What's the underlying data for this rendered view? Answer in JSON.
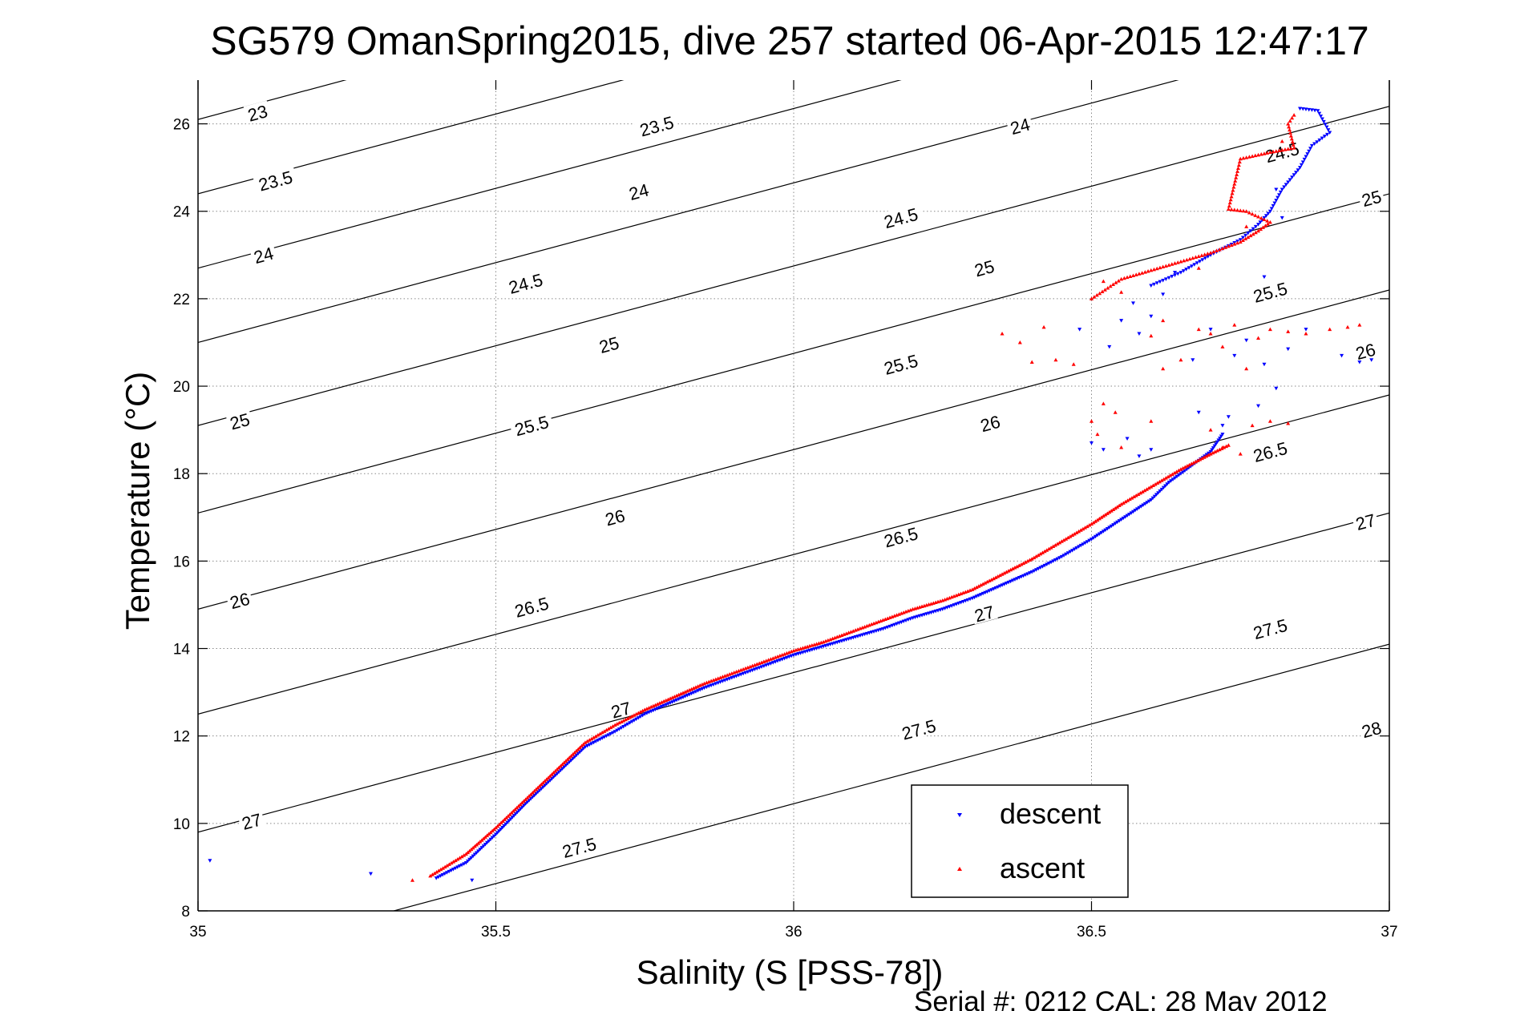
{
  "chart_data": {
    "type": "scatter",
    "title": "SG579 OmanSpring2015, dive 257 started 06-Apr-2015 12:47:17",
    "xlabel": "Salinity (S [PSS-78])",
    "ylabel": "Temperature (°C)",
    "xlim": [
      35,
      37
    ],
    "ylim": [
      8,
      27
    ],
    "xticks": [
      35,
      35.5,
      36,
      36.5,
      37
    ],
    "xtick_labels": [
      "35",
      "35.5",
      "36",
      "36.5",
      "37"
    ],
    "yticks": [
      8,
      10,
      12,
      14,
      16,
      18,
      20,
      22,
      24,
      26
    ],
    "ytick_labels": [
      "8",
      "10",
      "12",
      "14",
      "16",
      "18",
      "20",
      "22",
      "24",
      "26"
    ],
    "grid": "dotted at major ticks",
    "legend_position": "lower-right",
    "contour_lines": {
      "levels": [
        23,
        23.5,
        24,
        24.5,
        25,
        25.5,
        26,
        26.5,
        27,
        27.5,
        28
      ],
      "left_intercepts": [
        27.2,
        26.1,
        24.4,
        22.7,
        21.0,
        19.1,
        17.1,
        14.9,
        12.5,
        9.8,
        6.8
      ],
      "slope_degC_per_psu": 3.65,
      "label_positions": [
        {
          "text": "23",
          "s": 35.1,
          "t": 26.25
        },
        {
          "text": "23.5",
          "s": 35.77,
          "t": 25.95
        },
        {
          "text": "24",
          "s": 36.38,
          "t": 25.95
        },
        {
          "text": "23.5",
          "s": 35.13,
          "t": 24.7
        },
        {
          "text": "24",
          "s": 35.74,
          "t": 24.45
        },
        {
          "text": "24.5",
          "s": 36.82,
          "t": 25.35
        },
        {
          "text": "24",
          "s": 35.11,
          "t": 23.0
        },
        {
          "text": "24.5",
          "s": 36.18,
          "t": 23.85
        },
        {
          "text": "25",
          "s": 36.97,
          "t": 24.3
        },
        {
          "text": "24.5",
          "s": 35.55,
          "t": 22.35
        },
        {
          "text": "25",
          "s": 36.32,
          "t": 22.7
        },
        {
          "text": "25.5",
          "s": 36.8,
          "t": 22.15
        },
        {
          "text": "25",
          "s": 35.69,
          "t": 20.95
        },
        {
          "text": "25.5",
          "s": 36.18,
          "t": 20.5
        },
        {
          "text": "26",
          "s": 36.96,
          "t": 20.8
        },
        {
          "text": "25",
          "s": 35.07,
          "t": 19.2
        },
        {
          "text": "25.5",
          "s": 35.56,
          "t": 19.1
        },
        {
          "text": "26",
          "s": 36.33,
          "t": 19.15
        },
        {
          "text": "26.5",
          "s": 36.8,
          "t": 18.5
        },
        {
          "text": "26",
          "s": 35.7,
          "t": 17.0
        },
        {
          "text": "26.5",
          "s": 36.18,
          "t": 16.55
        },
        {
          "text": "27",
          "s": 36.96,
          "t": 16.9
        },
        {
          "text": "26",
          "s": 35.07,
          "t": 15.1
        },
        {
          "text": "26.5",
          "s": 35.56,
          "t": 14.95
        },
        {
          "text": "27",
          "s": 36.32,
          "t": 14.8
        },
        {
          "text": "27.5",
          "s": 36.8,
          "t": 14.45
        },
        {
          "text": "27",
          "s": 35.71,
          "t": 12.6
        },
        {
          "text": "27.5",
          "s": 36.21,
          "t": 12.15
        },
        {
          "text": "28",
          "s": 36.97,
          "t": 12.15
        },
        {
          "text": "27",
          "s": 35.09,
          "t": 10.05
        },
        {
          "text": "27.5",
          "s": 35.64,
          "t": 9.45
        }
      ]
    },
    "series": [
      {
        "name": "descent",
        "color": "#0000ff",
        "marker": "triangle-down",
        "profile": [
          [
            35.4,
            8.75
          ],
          [
            35.45,
            9.1
          ],
          [
            35.5,
            9.75
          ],
          [
            35.55,
            10.45
          ],
          [
            35.6,
            11.1
          ],
          [
            35.65,
            11.75
          ],
          [
            35.7,
            12.1
          ],
          [
            35.75,
            12.5
          ],
          [
            35.8,
            12.8
          ],
          [
            35.85,
            13.1
          ],
          [
            35.9,
            13.35
          ],
          [
            35.95,
            13.6
          ],
          [
            36.0,
            13.85
          ],
          [
            36.05,
            14.05
          ],
          [
            36.1,
            14.25
          ],
          [
            36.15,
            14.45
          ],
          [
            36.2,
            14.7
          ],
          [
            36.25,
            14.9
          ],
          [
            36.3,
            15.15
          ],
          [
            36.35,
            15.45
          ],
          [
            36.4,
            15.75
          ],
          [
            36.45,
            16.1
          ],
          [
            36.5,
            16.5
          ],
          [
            36.55,
            16.95
          ],
          [
            36.6,
            17.4
          ],
          [
            36.63,
            17.8
          ],
          [
            36.66,
            18.1
          ],
          [
            36.7,
            18.5
          ],
          [
            36.72,
            18.9
          ]
        ],
        "upper_profile": [
          [
            36.6,
            22.3
          ],
          [
            36.65,
            22.6
          ],
          [
            36.7,
            23.0
          ],
          [
            36.75,
            23.35
          ],
          [
            36.78,
            23.7
          ],
          [
            36.8,
            24.0
          ],
          [
            36.82,
            24.5
          ],
          [
            36.85,
            25.0
          ],
          [
            36.87,
            25.5
          ],
          [
            36.9,
            25.8
          ],
          [
            36.88,
            26.3
          ],
          [
            36.85,
            26.35
          ]
        ],
        "scatter": [
          [
            35.02,
            9.15
          ],
          [
            35.29,
            8.85
          ],
          [
            35.46,
            8.7
          ],
          [
            36.5,
            18.7
          ],
          [
            36.52,
            18.55
          ],
          [
            36.56,
            18.8
          ],
          [
            36.58,
            18.4
          ],
          [
            36.6,
            18.55
          ],
          [
            36.68,
            19.4
          ],
          [
            36.72,
            19.1
          ],
          [
            36.73,
            19.3
          ],
          [
            36.78,
            19.55
          ],
          [
            36.48,
            21.3
          ],
          [
            36.53,
            20.9
          ],
          [
            36.55,
            21.5
          ],
          [
            36.58,
            21.2
          ],
          [
            36.62,
            22.1
          ],
          [
            36.67,
            20.6
          ],
          [
            36.7,
            21.3
          ],
          [
            36.74,
            20.7
          ],
          [
            36.76,
            21.05
          ],
          [
            36.79,
            20.5
          ],
          [
            36.81,
            19.95
          ],
          [
            36.83,
            20.85
          ],
          [
            36.86,
            21.3
          ],
          [
            36.92,
            20.7
          ],
          [
            36.95,
            20.55
          ],
          [
            36.97,
            20.6
          ],
          [
            36.57,
            21.9
          ],
          [
            36.6,
            21.6
          ],
          [
            36.64,
            22.6
          ],
          [
            36.79,
            22.5
          ],
          [
            36.82,
            23.85
          ],
          [
            36.81,
            24.5
          ]
        ]
      },
      {
        "name": "ascent",
        "color": "#ff0000",
        "marker": "triangle-up",
        "profile": [
          [
            35.39,
            8.8
          ],
          [
            35.45,
            9.3
          ],
          [
            35.5,
            9.9
          ],
          [
            35.55,
            10.55
          ],
          [
            35.6,
            11.2
          ],
          [
            35.65,
            11.85
          ],
          [
            35.7,
            12.25
          ],
          [
            35.75,
            12.6
          ],
          [
            35.8,
            12.9
          ],
          [
            35.85,
            13.2
          ],
          [
            35.9,
            13.45
          ],
          [
            35.95,
            13.7
          ],
          [
            36.0,
            13.95
          ],
          [
            36.05,
            14.15
          ],
          [
            36.1,
            14.4
          ],
          [
            36.15,
            14.65
          ],
          [
            36.2,
            14.9
          ],
          [
            36.25,
            15.1
          ],
          [
            36.3,
            15.35
          ],
          [
            36.35,
            15.7
          ],
          [
            36.4,
            16.05
          ],
          [
            36.45,
            16.45
          ],
          [
            36.5,
            16.85
          ],
          [
            36.55,
            17.3
          ],
          [
            36.6,
            17.7
          ],
          [
            36.65,
            18.1
          ],
          [
            36.7,
            18.45
          ],
          [
            36.73,
            18.65
          ]
        ],
        "upper_profile": [
          [
            36.5,
            22.0
          ],
          [
            36.55,
            22.45
          ],
          [
            36.6,
            22.65
          ],
          [
            36.65,
            22.85
          ],
          [
            36.7,
            23.05
          ],
          [
            36.75,
            23.3
          ],
          [
            36.78,
            23.55
          ],
          [
            36.8,
            23.75
          ],
          [
            36.76,
            24.0
          ],
          [
            36.73,
            24.05
          ],
          [
            36.75,
            25.2
          ],
          [
            36.8,
            25.35
          ],
          [
            36.84,
            25.45
          ],
          [
            36.83,
            26.0
          ],
          [
            36.84,
            26.2
          ]
        ],
        "scatter": [
          [
            35.36,
            8.7
          ],
          [
            36.35,
            21.2
          ],
          [
            36.38,
            21.0
          ],
          [
            36.42,
            21.35
          ],
          [
            36.4,
            20.55
          ],
          [
            36.44,
            20.6
          ],
          [
            36.47,
            20.5
          ],
          [
            36.52,
            19.6
          ],
          [
            36.5,
            19.2
          ],
          [
            36.54,
            19.4
          ],
          [
            36.51,
            18.9
          ],
          [
            36.55,
            18.6
          ],
          [
            36.6,
            19.2
          ],
          [
            36.6,
            21.15
          ],
          [
            36.62,
            20.4
          ],
          [
            36.65,
            20.6
          ],
          [
            36.68,
            21.3
          ],
          [
            36.7,
            21.2
          ],
          [
            36.72,
            20.9
          ],
          [
            36.74,
            21.4
          ],
          [
            36.76,
            20.4
          ],
          [
            36.78,
            21.1
          ],
          [
            36.8,
            21.3
          ],
          [
            36.83,
            21.25
          ],
          [
            36.86,
            21.2
          ],
          [
            36.9,
            21.3
          ],
          [
            36.93,
            21.35
          ],
          [
            36.95,
            21.4
          ],
          [
            36.77,
            19.1
          ],
          [
            36.8,
            19.2
          ],
          [
            36.83,
            19.15
          ],
          [
            36.7,
            19.0
          ],
          [
            36.72,
            18.6
          ],
          [
            36.75,
            18.45
          ],
          [
            36.55,
            22.15
          ],
          [
            36.52,
            22.4
          ],
          [
            36.62,
            21.5
          ],
          [
            36.68,
            22.7
          ],
          [
            36.76,
            23.65
          ],
          [
            36.82,
            25.6
          ]
        ]
      }
    ],
    "legend": [
      "descent",
      "ascent"
    ],
    "footer": "Serial #: 0212  CAL: 28 May 2012"
  }
}
